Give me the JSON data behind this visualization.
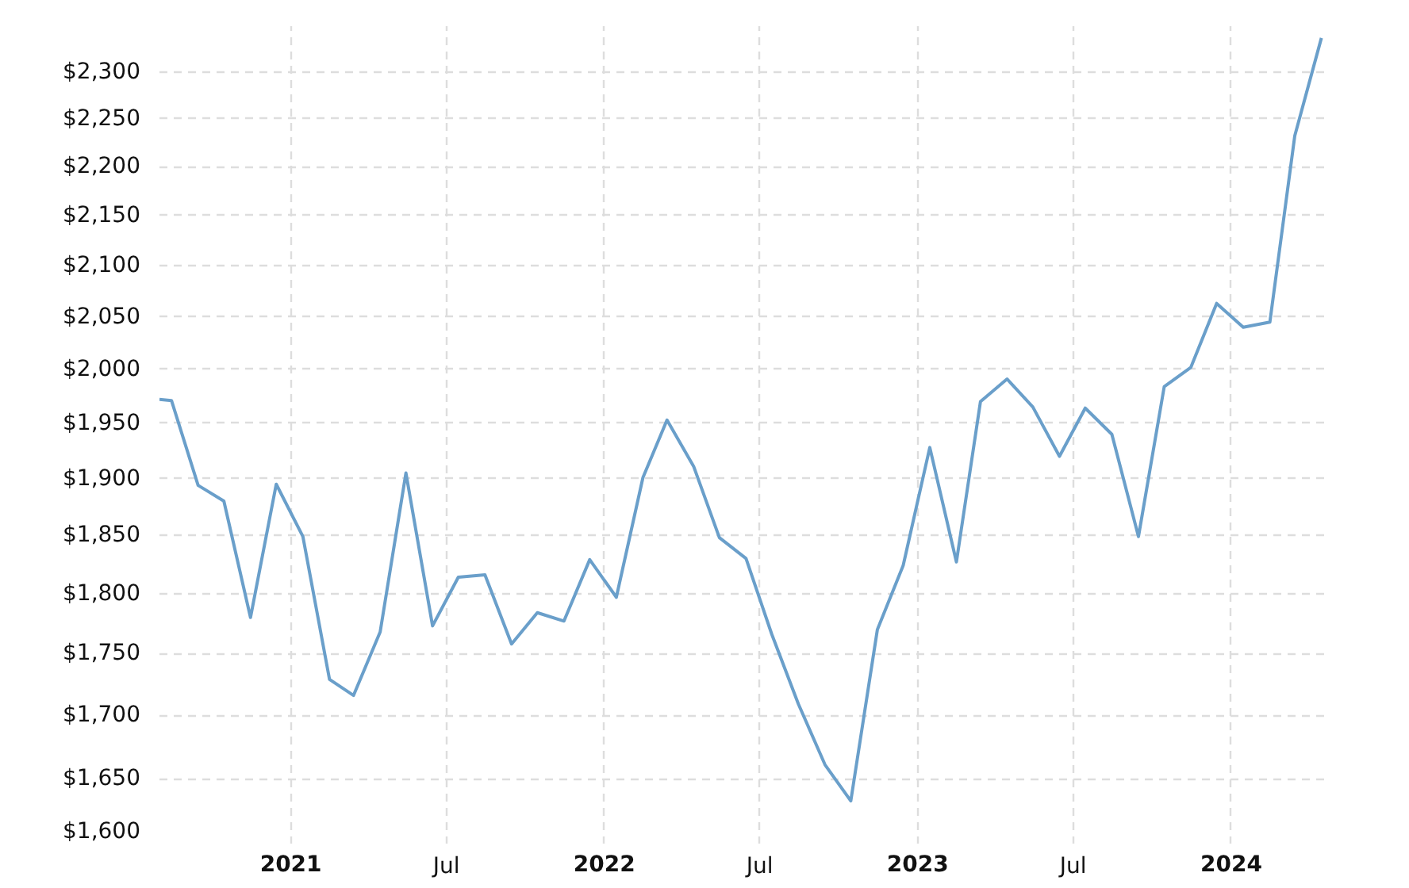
{
  "chart_data": {
    "type": "line",
    "log": "y",
    "grid": true,
    "marker": "none",
    "line_style": "solid",
    "x": [
      "2020-08-01",
      "2020-08-15",
      "2020-09-15",
      "2020-10-15",
      "2020-11-15",
      "2020-12-15",
      "2021-01-15",
      "2021-02-15",
      "2021-03-15",
      "2021-04-15",
      "2021-05-15",
      "2021-06-15",
      "2021-07-15",
      "2021-08-15",
      "2021-09-15",
      "2021-10-15",
      "2021-11-15",
      "2021-12-15",
      "2022-01-15",
      "2022-02-15",
      "2022-03-15",
      "2022-04-15",
      "2022-05-15",
      "2022-06-15",
      "2022-07-15",
      "2022-08-15",
      "2022-09-15",
      "2022-10-15",
      "2022-11-15",
      "2022-12-15",
      "2023-01-15",
      "2023-02-15",
      "2023-03-15",
      "2023-04-15",
      "2023-05-15",
      "2023-06-15",
      "2023-07-15",
      "2023-08-15",
      "2023-09-15",
      "2023-10-15",
      "2023-11-15",
      "2023-12-15",
      "2024-01-15",
      "2024-02-15",
      "2024-03-15",
      "2024-04-15"
    ],
    "series": [
      {
        "color": "#6a9fca",
        "values": [
          1972,
          1971,
          1894,
          1880,
          1780,
          1895,
          1849,
          1729,
          1716,
          1768,
          1905,
          1773,
          1814,
          1816,
          1758,
          1784,
          1777,
          1829,
          1797,
          1901,
          1953,
          1911,
          1848,
          1830,
          1766,
          1709,
          1661,
          1633,
          1770,
          1824,
          1928,
          1827,
          1970,
          1991,
          1965,
          1920,
          1964,
          1940,
          1849,
          1984,
          2002,
          2063,
          2040,
          2045,
          2232,
          2337
        ]
      }
    ],
    "xlim": [
      "2020-08-01",
      "2024-04-20"
    ],
    "xticks": [
      {
        "value": "2021-01-01",
        "label": "2021"
      },
      {
        "value": "2021-07-01",
        "label": "Jul"
      },
      {
        "value": "2022-01-01",
        "label": "2022"
      },
      {
        "value": "2022-07-01",
        "label": "Jul"
      },
      {
        "value": "2023-01-01",
        "label": "2023"
      },
      {
        "value": "2023-07-01",
        "label": "Jul"
      },
      {
        "value": "2024-01-01",
        "label": "2024"
      }
    ],
    "ylim": [
      1600,
      2350
    ],
    "yticks": [
      {
        "value": 1600,
        "label": "$1,600"
      },
      {
        "value": 1650,
        "label": "$1,650"
      },
      {
        "value": 1700,
        "label": "$1,700"
      },
      {
        "value": 1750,
        "label": "$1,750"
      },
      {
        "value": 1800,
        "label": "$1,800"
      },
      {
        "value": 1850,
        "label": "$1,850"
      },
      {
        "value": 1900,
        "label": "$1,900"
      },
      {
        "value": 1950,
        "label": "$1,950"
      },
      {
        "value": 2000,
        "label": "$2,000"
      },
      {
        "value": 2050,
        "label": "$2,050"
      },
      {
        "value": 2100,
        "label": "$2,100"
      },
      {
        "value": 2150,
        "label": "$2,150"
      },
      {
        "value": 2200,
        "label": "$2,200"
      },
      {
        "value": 2250,
        "label": "$2,250"
      },
      {
        "value": 2300,
        "label": "$2,300"
      }
    ]
  }
}
